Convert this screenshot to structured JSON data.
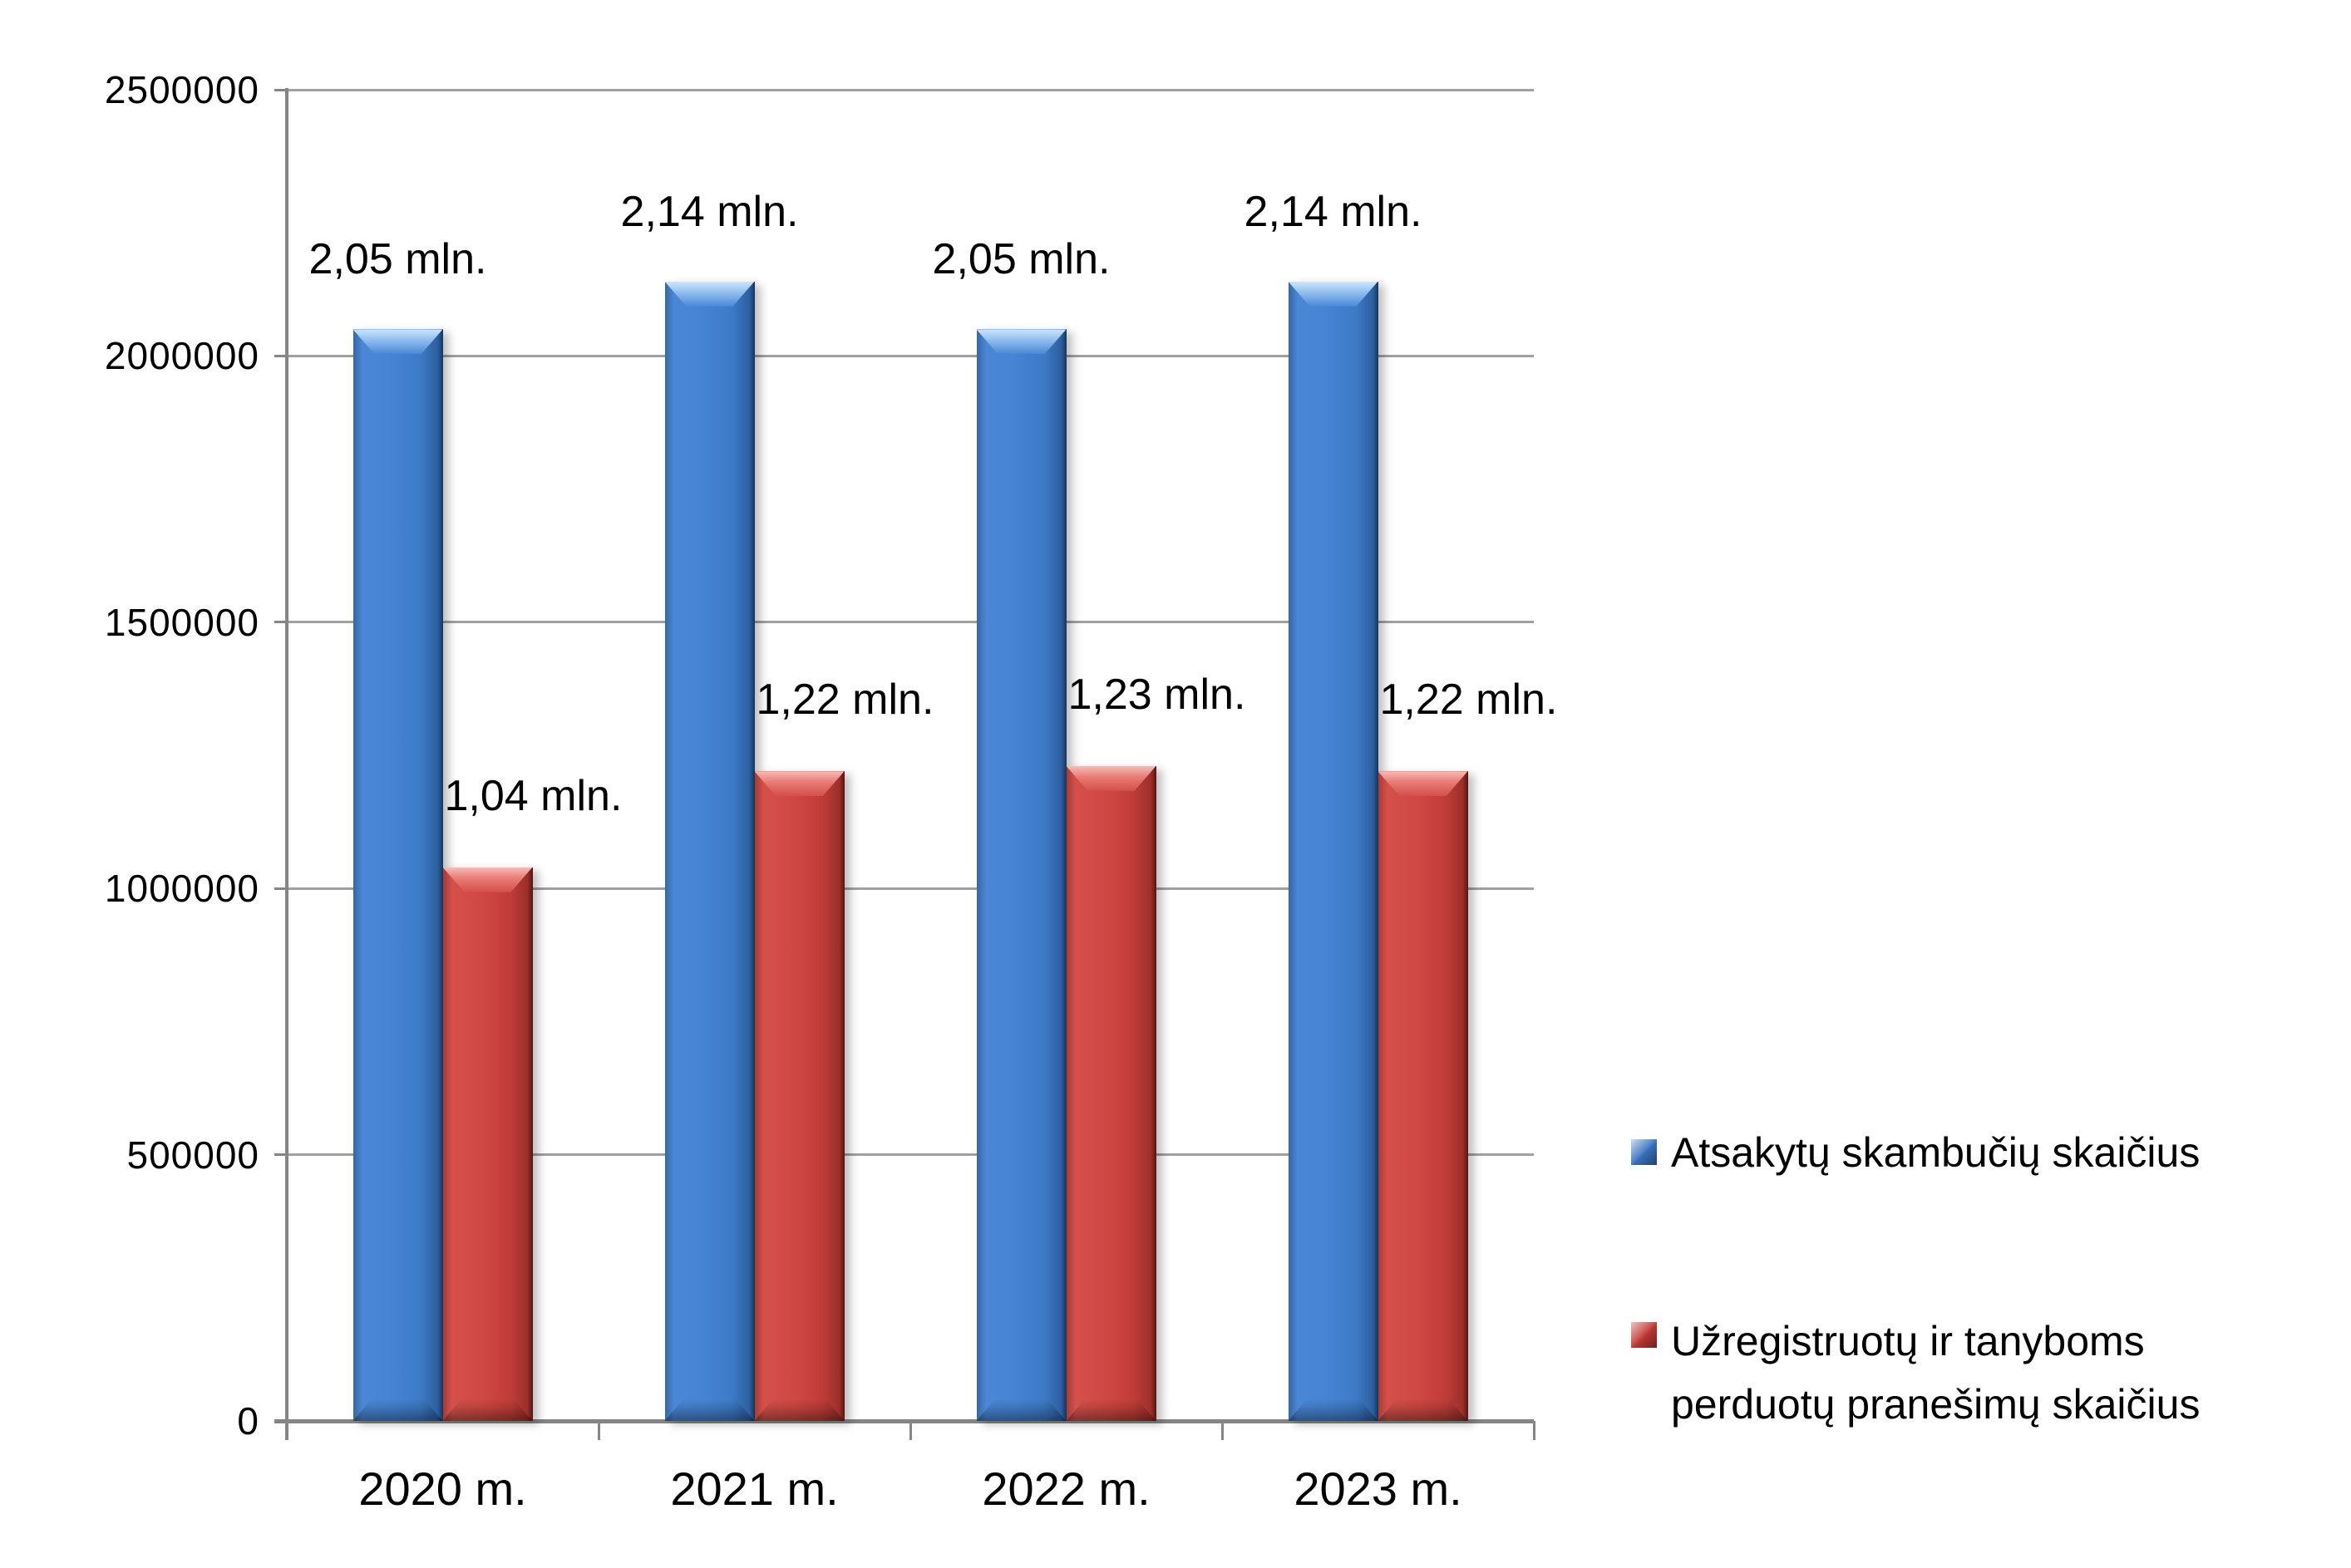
{
  "chart_data": {
    "type": "bar",
    "categories": [
      "2020 m.",
      "2021 m.",
      "2022 m.",
      "2023 m."
    ],
    "series": [
      {
        "key": "answered-calls",
        "name": "Atsakytų skambučių skaičius",
        "color": "#4583d3",
        "values": [
          2050000,
          2140000,
          2050000,
          2140000
        ],
        "labels": [
          "2,05 mln.",
          "2,14 mln.",
          "2,05 mln.",
          "2,14 mln."
        ]
      },
      {
        "key": "registered-messages",
        "name": "Užregistruotų ir tanyboms perduotų pranešimų skaičius",
        "color": "#cf4843",
        "values": [
          1040000,
          1220000,
          1230000,
          1220000
        ],
        "labels": [
          "1,04 mln.",
          "1,22 mln.",
          "1,23 mln.",
          "1,22 mln."
        ]
      }
    ],
    "title": "",
    "xlabel": "",
    "ylabel": "",
    "ylim": [
      0,
      2500000
    ],
    "ytick_interval": 500000,
    "yticks": [
      "2500000",
      "2000000",
      "1500000",
      "1000000",
      "500000",
      "0"
    ],
    "grid": true,
    "legend_position": "right"
  }
}
